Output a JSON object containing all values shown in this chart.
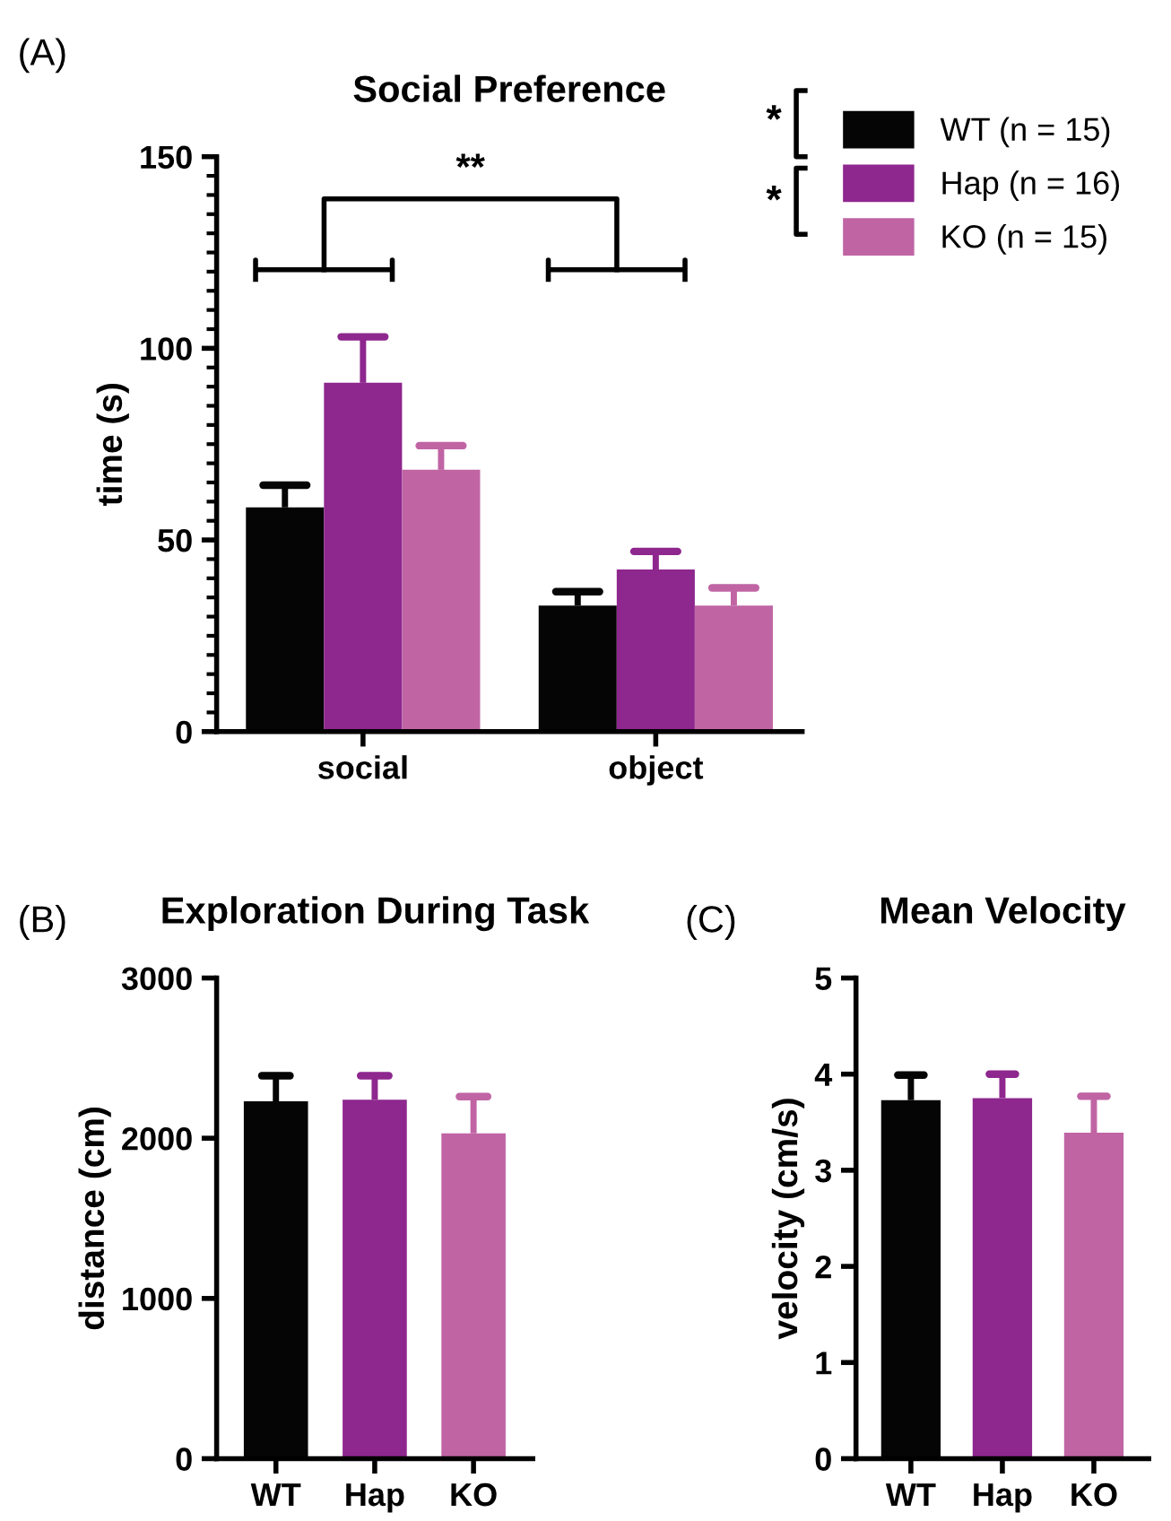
{
  "chart_data": [
    {
      "type": "bar",
      "title": "Social Preference",
      "ylabel": "time (s)",
      "categories": [
        "social",
        "object"
      ],
      "series": [
        {
          "name": "WT (n = 15)",
          "color": "#050505",
          "values": [
            58.5,
            32.9
          ],
          "errors": [
            [
              58.5,
              64.3
            ],
            [
              32.9,
              36.5
            ]
          ]
        },
        {
          "name": "Hap (n = 16)",
          "color": "#8e278e",
          "values": [
            91,
            42.3
          ],
          "errors": [
            [
              91,
              103
            ],
            [
              42.3,
              47
            ]
          ]
        },
        {
          "name": "KO (n = 15)",
          "color": "#c064a4",
          "values": [
            68.3,
            32.9
          ],
          "errors": [
            [
              68.3,
              74.6
            ],
            [
              32.9,
              37.5
            ]
          ]
        }
      ],
      "ylim": [
        0,
        150
      ],
      "yticks": [
        0,
        50,
        100,
        150
      ],
      "grid": false,
      "legend": "top right",
      "annotations": [
        "(A)",
        "**",
        "*",
        "*"
      ]
    },
    {
      "type": "bar",
      "title": "Exploration During Task",
      "ylabel": "distance (cm)",
      "categories": [
        "WT",
        "Hap",
        "KO"
      ],
      "values": [
        2230,
        2240,
        2030
      ],
      "colors": [
        "#050505",
        "#8e278e",
        "#c064a4"
      ],
      "errors": [
        [
          2230,
          2390
        ],
        [
          2240,
          2390
        ],
        [
          2030,
          2260
        ]
      ],
      "ylim": [
        0,
        3000
      ],
      "yticks": [
        0,
        1000,
        2000,
        3000
      ],
      "grid": false,
      "annotations": [
        "(B)"
      ]
    },
    {
      "type": "bar",
      "title": "Mean Velocity",
      "ylabel": "velocity (cm/s)",
      "categories": [
        "WT",
        "Hap",
        "KO"
      ],
      "values": [
        3.73,
        3.75,
        3.39
      ],
      "colors": [
        "#050505",
        "#8e278e",
        "#c064a4"
      ],
      "errors": [
        [
          3.73,
          3.99
        ],
        [
          3.75,
          4.0
        ],
        [
          3.39,
          3.77
        ]
      ],
      "ylim": [
        0,
        5
      ],
      "yticks": [
        0,
        1,
        2,
        3,
        4,
        5
      ],
      "grid": false,
      "annotations": [
        "(C)"
      ]
    }
  ]
}
